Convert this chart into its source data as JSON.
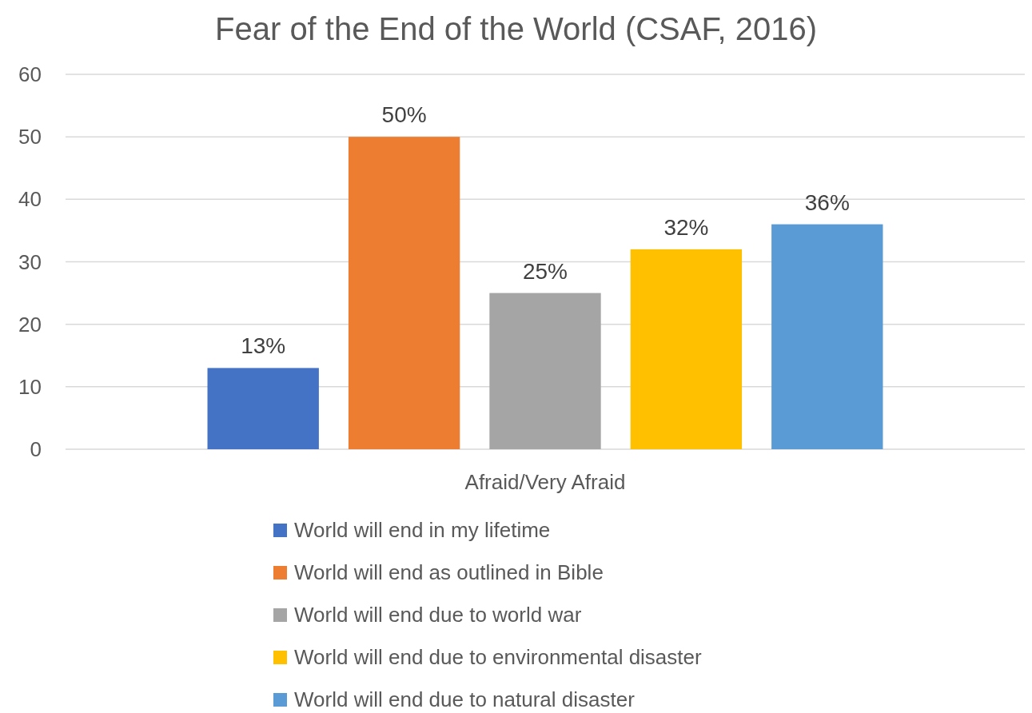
{
  "chart_data": {
    "type": "bar",
    "title": "Fear of the End of the World (CSAF, 2016)",
    "categories": [
      "Afraid/Very Afraid"
    ],
    "series": [
      {
        "name": "World will end in my lifetime",
        "color": "#4472c4",
        "values": [
          13
        ],
        "value_labels": [
          "13%"
        ]
      },
      {
        "name": "World will end as outlined in Bible",
        "color": "#ed7d31",
        "values": [
          50
        ],
        "value_labels": [
          "50%"
        ]
      },
      {
        "name": "World will end due to world war",
        "color": "#a5a5a5",
        "values": [
          25
        ],
        "value_labels": [
          "25%"
        ]
      },
      {
        "name": "World will end due to environmental disaster",
        "color": "#ffc000",
        "values": [
          32
        ],
        "value_labels": [
          "32%"
        ]
      },
      {
        "name": "World will end due to natural disaster",
        "color": "#5b9bd5",
        "values": [
          36
        ],
        "value_labels": [
          "36%"
        ]
      }
    ],
    "ylim": [
      0,
      60
    ],
    "yticks": [
      0,
      10,
      20,
      30,
      40,
      50,
      60
    ],
    "grid": "y",
    "legend": "bottom"
  }
}
